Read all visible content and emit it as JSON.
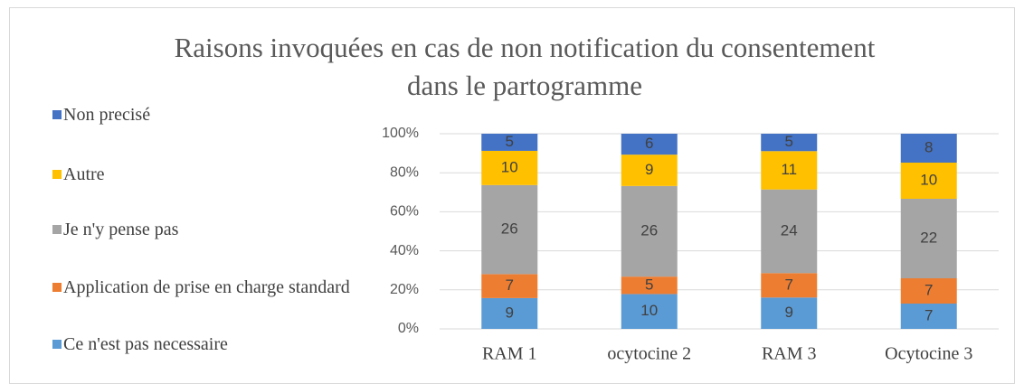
{
  "chart_data": {
    "type": "bar",
    "stacked": "percent",
    "title": "Raisons invoquées en cas de non notification du consentement dans le partogramme",
    "categories": [
      "RAM 1",
      "ocytocine 2",
      "RAM 3",
      "Ocytocine 3"
    ],
    "series": [
      {
        "name": "Ce n'est pas necessaire",
        "color": "#5b9bd5",
        "values": [
          9,
          10,
          9,
          7
        ]
      },
      {
        "name": "Application de prise en charge standard",
        "color": "#ed7d31",
        "values": [
          7,
          5,
          7,
          7
        ]
      },
      {
        "name": "Je n'y pense pas",
        "color": "#a5a5a5",
        "values": [
          26,
          26,
          24,
          22
        ]
      },
      {
        "name": "Autre",
        "color": "#ffc000",
        "values": [
          10,
          9,
          11,
          10
        ]
      },
      {
        "name": "Non precisé",
        "color": "#4472c4",
        "values": [
          5,
          6,
          5,
          8
        ]
      }
    ],
    "ylim": [
      0,
      100
    ],
    "yticks": [
      {
        "value": 0,
        "label": "0%"
      },
      {
        "value": 20,
        "label": "20%"
      },
      {
        "value": 40,
        "label": "40%"
      },
      {
        "value": 60,
        "label": "60%"
      },
      {
        "value": 80,
        "label": "80%"
      },
      {
        "value": 100,
        "label": "100%"
      }
    ],
    "grid": true,
    "legend": "left"
  }
}
